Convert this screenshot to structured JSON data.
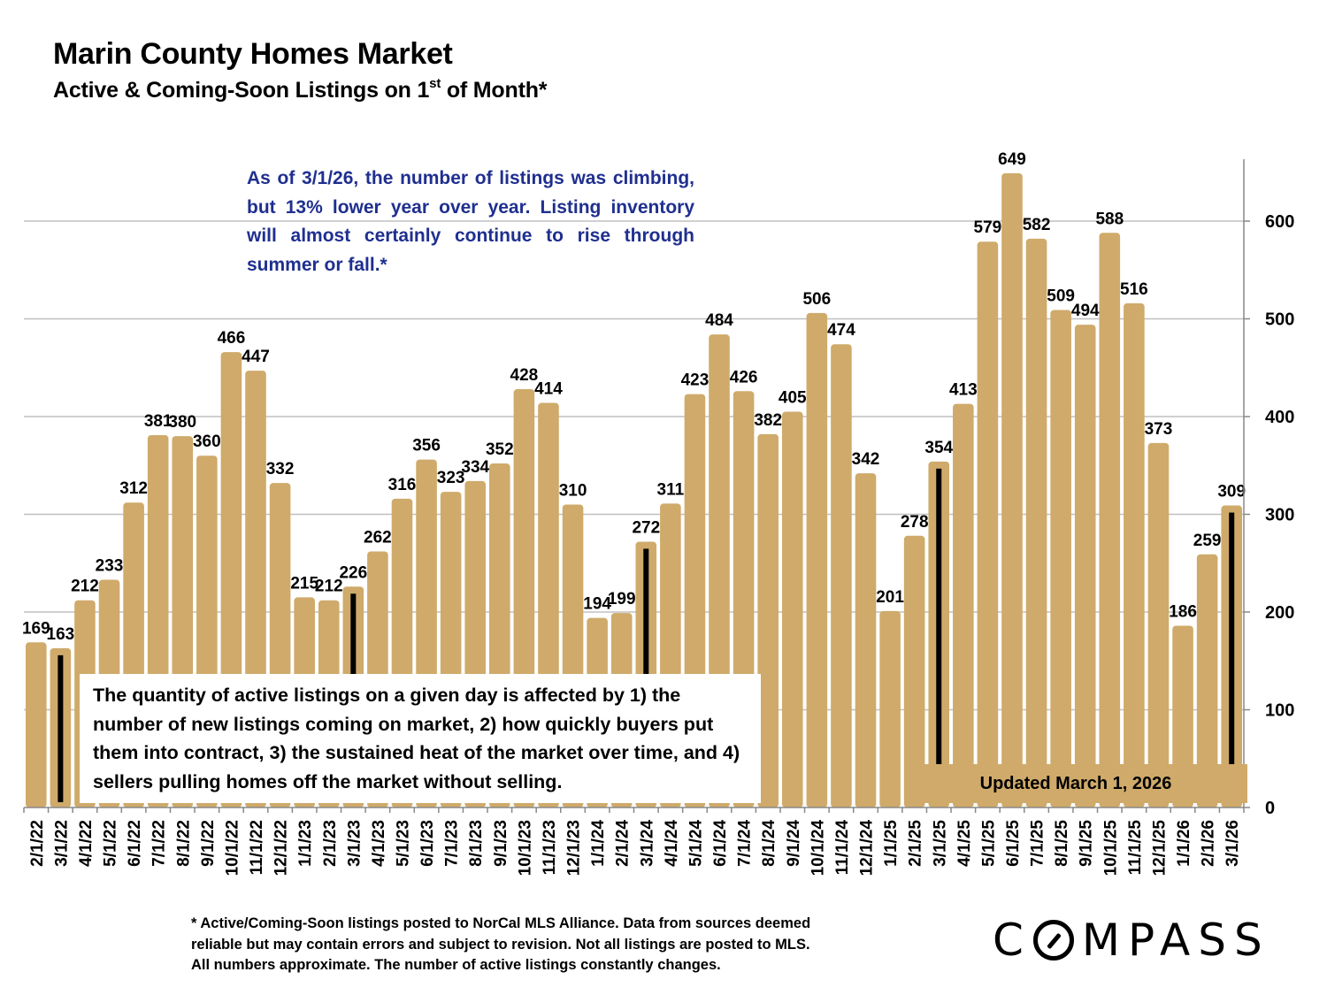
{
  "header": {
    "title": "Marin County Homes Market",
    "subtitle_main": "Active & Coming-Soon Listings on 1",
    "subtitle_sup": "st",
    "subtitle_end": " of Month*"
  },
  "annotations": {
    "blue_note": "As of 3/1/26, the number of listings was climbing, but 13% lower year over year. Listing inventory will almost certainly continue to rise through summer or fall.*",
    "box_note": "The quantity of active listings on a given day is affected by 1) the number of new listings coming on market, 2) how quickly buyers put them into contract, 3) the sustained heat of the market over time, and 4) sellers pulling homes off the market without selling.",
    "updated": "Updated March 1, 2026"
  },
  "footnote": [
    "* Active/Coming-Soon listings posted to NorCal MLS Alliance.  Data from sources deemed",
    "reliable but may contain errors and subject to revision.  Not all listings are posted to MLS.",
    "All numbers approximate. The number of active listings constantly changes."
  ],
  "logo": {
    "pre": "C",
    "post": "MPASS"
  },
  "colors": {
    "bar": "#cfaa6a",
    "marker": "#000000",
    "blue_text": "#1f2f8f",
    "grid": "#c0c0c0"
  },
  "chart_data": {
    "type": "bar",
    "title": "Marin County Homes Market",
    "subtitle": "Active & Coming-Soon Listings on 1st of Month*",
    "xlabel": "",
    "ylabel": "",
    "ylim": [
      0,
      660
    ],
    "yticks": [
      0,
      100,
      200,
      300,
      400,
      500,
      600
    ],
    "y_axis_side": "right",
    "grid": true,
    "categories": [
      "2/1/22",
      "3/1/22",
      "4/1/22",
      "5/1/22",
      "6/1/22",
      "7/1/22",
      "8/1/22",
      "9/1/22",
      "10/1/22",
      "11/1/22",
      "12/1/22",
      "1/1/23",
      "2/1/23",
      "3/1/23",
      "4/1/23",
      "5/1/23",
      "6/1/23",
      "7/1/23",
      "8/1/23",
      "9/1/23",
      "10/1/23",
      "11/1/23",
      "12/1/23",
      "1/1/24",
      "2/1/24",
      "3/1/24",
      "4/1/24",
      "5/1/24",
      "6/1/24",
      "7/1/24",
      "8/1/24",
      "9/1/24",
      "10/1/24",
      "11/1/24",
      "12/1/24",
      "1/1/25",
      "2/1/25",
      "3/1/25",
      "4/1/25",
      "5/1/25",
      "6/1/25",
      "7/1/25",
      "8/1/25",
      "9/1/25",
      "10/1/25",
      "11/1/25",
      "12/1/25",
      "1/1/26",
      "2/1/26",
      "3/1/26"
    ],
    "values": [
      169,
      163,
      212,
      233,
      312,
      381,
      380,
      360,
      466,
      447,
      332,
      215,
      212,
      226,
      262,
      316,
      356,
      323,
      334,
      352,
      428,
      414,
      310,
      194,
      199,
      272,
      311,
      423,
      484,
      426,
      382,
      405,
      506,
      474,
      342,
      201,
      278,
      354,
      413,
      579,
      649,
      582,
      509,
      494,
      588,
      516,
      373,
      186,
      259,
      309
    ],
    "highlighted_march_markers": [
      "3/1/22",
      "3/1/23",
      "3/1/24",
      "3/1/25",
      "3/1/26"
    ]
  }
}
